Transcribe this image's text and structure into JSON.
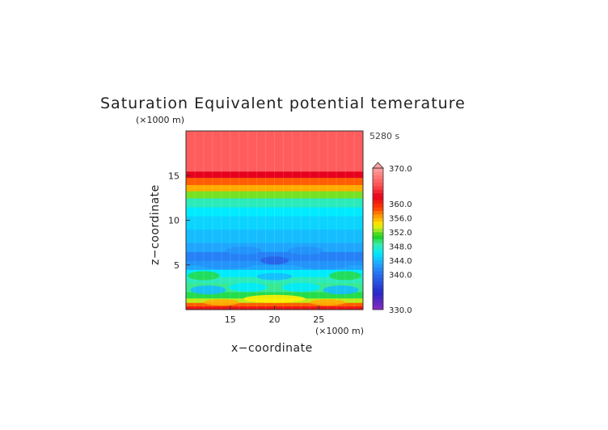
{
  "chart_data": {
    "type": "heatmap",
    "title": "Saturation Equivalent potential temerature",
    "time_label": "5280 s",
    "xlabel": "x−coordinate",
    "ylabel": "z−coordinate",
    "x_unit": "(×1000 m)",
    "y_unit": "(×1000 m)",
    "xlim": [
      10,
      30
    ],
    "ylim": [
      0,
      20
    ],
    "x_ticks": [
      15,
      20,
      25
    ],
    "y_ticks": [
      5,
      10,
      15
    ],
    "colorbar": {
      "min": 330,
      "max": 370,
      "extend": "max",
      "tick_labels": [
        {
          "value": 330,
          "label": "330.0"
        },
        {
          "value": 340,
          "label": "340.0"
        },
        {
          "value": 344,
          "label": "344.0"
        },
        {
          "value": 348,
          "label": "348.0"
        },
        {
          "value": 352,
          "label": "352.0"
        },
        {
          "value": 356,
          "label": "356.0"
        },
        {
          "value": 360,
          "label": "360.0"
        },
        {
          "value": 370,
          "label": "370.0"
        }
      ]
    },
    "field_profile": [
      {
        "z": 0.0,
        "value": 361
      },
      {
        "z": 0.4,
        "value": 358
      },
      {
        "z": 0.8,
        "value": 353
      },
      {
        "z": 1.3,
        "value": 350
      },
      {
        "z": 2.0,
        "value": 349
      },
      {
        "z": 3.0,
        "value": 348
      },
      {
        "z": 3.7,
        "value": 346
      },
      {
        "z": 4.5,
        "value": 343
      },
      {
        "z": 5.0,
        "value": 342
      },
      {
        "z": 5.5,
        "value": 341
      },
      {
        "z": 6.5,
        "value": 343
      },
      {
        "z": 7.5,
        "value": 344
      },
      {
        "z": 9.0,
        "value": 345
      },
      {
        "z": 10.5,
        "value": 346
      },
      {
        "z": 11.5,
        "value": 348
      },
      {
        "z": 12.5,
        "value": 352
      },
      {
        "z": 13.3,
        "value": 356
      },
      {
        "z": 14.0,
        "value": 358
      },
      {
        "z": 14.8,
        "value": 362
      },
      {
        "z": 15.5,
        "value": 366
      },
      {
        "z": 20.0,
        "value": 370
      }
    ],
    "features": [
      {
        "x": 20.0,
        "z": 5.5,
        "rx": 1.6,
        "rz": 0.45,
        "value": 339
      },
      {
        "x": 16.5,
        "z": 6.6,
        "rx": 2.0,
        "rz": 0.45,
        "value": 342
      },
      {
        "x": 23.5,
        "z": 6.6,
        "rx": 2.0,
        "rz": 0.45,
        "value": 342
      },
      {
        "x": 14.5,
        "z": 5.0,
        "rx": 3.0,
        "rz": 0.45,
        "value": 342
      },
      {
        "x": 25.5,
        "z": 5.0,
        "rx": 3.0,
        "rz": 0.45,
        "value": 342
      },
      {
        "x": 20.0,
        "z": 3.7,
        "rx": 2.0,
        "rz": 0.4,
        "value": 344
      },
      {
        "x": 17.0,
        "z": 2.5,
        "rx": 2.2,
        "rz": 0.5,
        "value": 346
      },
      {
        "x": 23.0,
        "z": 2.5,
        "rx": 2.2,
        "rz": 0.5,
        "value": 346
      },
      {
        "x": 12.0,
        "z": 3.8,
        "rx": 1.8,
        "rz": 0.5,
        "value": 350
      },
      {
        "x": 28.0,
        "z": 3.8,
        "rx": 1.8,
        "rz": 0.5,
        "value": 350
      },
      {
        "x": 12.5,
        "z": 2.2,
        "rx": 2.0,
        "rz": 0.5,
        "value": 344
      },
      {
        "x": 27.5,
        "z": 2.2,
        "rx": 2.0,
        "rz": 0.5,
        "value": 344
      },
      {
        "x": 20.0,
        "z": 1.2,
        "rx": 3.5,
        "rz": 0.45,
        "value": 354
      },
      {
        "x": 14.0,
        "z": 0.8,
        "rx": 2.0,
        "rz": 0.35,
        "value": 356
      },
      {
        "x": 26.0,
        "z": 0.8,
        "rx": 2.0,
        "rz": 0.35,
        "value": 356
      }
    ]
  }
}
